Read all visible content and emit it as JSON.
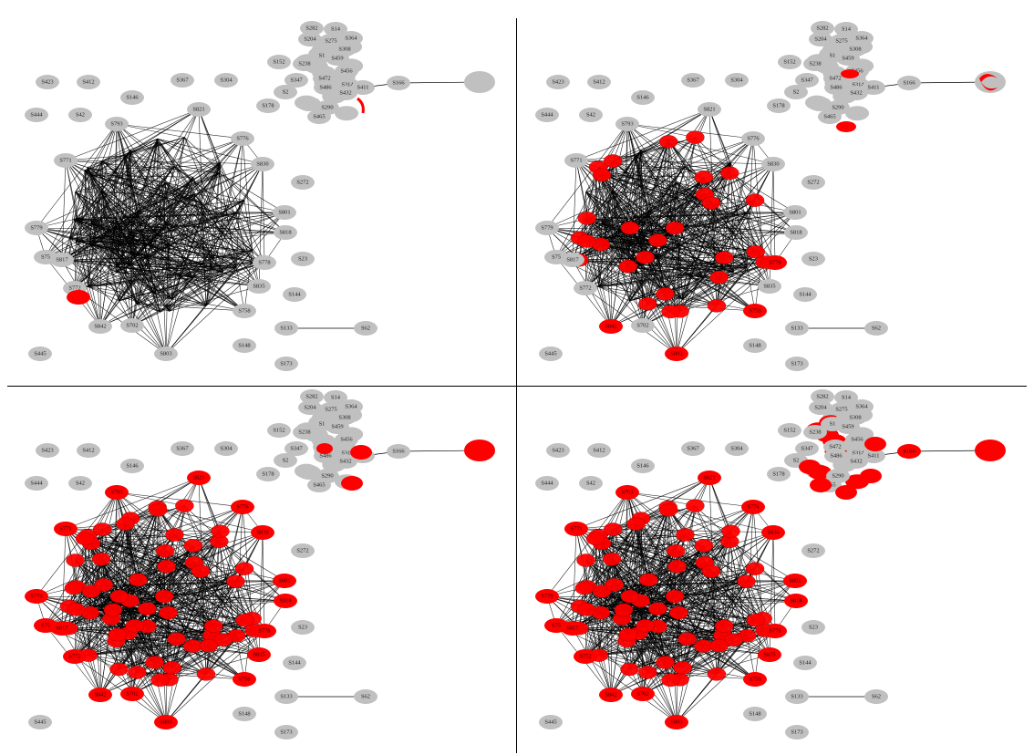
{
  "colors": {
    "inactive_node": "#c0c0c0",
    "active_node": "#ff0000",
    "edge": "#000000",
    "background": "#ffffff",
    "divider": "#000000"
  },
  "nodes": [
    {
      "id": "S282"
    },
    {
      "id": "S14"
    },
    {
      "id": "S204"
    },
    {
      "id": "S275"
    },
    {
      "id": "S364"
    },
    {
      "id": "S308"
    },
    {
      "id": "S152"
    },
    {
      "id": "S238"
    },
    {
      "id": "S1"
    },
    {
      "id": "S459"
    },
    {
      "id": "S456"
    },
    {
      "id": "S347"
    },
    {
      "id": "S472"
    },
    {
      "id": "S314"
    },
    {
      "id": "S486"
    },
    {
      "id": "S432"
    },
    {
      "id": "S411"
    },
    {
      "id": "S166"
    },
    {
      "id": "S178"
    },
    {
      "id": "S290"
    },
    {
      "id": "S465"
    },
    {
      "id": "S2"
    },
    {
      "id": "S423"
    },
    {
      "id": "S412"
    },
    {
      "id": "S367"
    },
    {
      "id": "S304"
    },
    {
      "id": "S146"
    },
    {
      "id": "S444"
    },
    {
      "id": "S42"
    },
    {
      "id": "S793"
    },
    {
      "id": "S821"
    },
    {
      "id": "S776"
    },
    {
      "id": "S771"
    },
    {
      "id": "S830"
    },
    {
      "id": "S272"
    },
    {
      "id": "S801"
    },
    {
      "id": "S779"
    },
    {
      "id": "S818"
    },
    {
      "id": "S75"
    },
    {
      "id": "S817"
    },
    {
      "id": "S778"
    },
    {
      "id": "S23"
    },
    {
      "id": "S772"
    },
    {
      "id": "S835"
    },
    {
      "id": "S144"
    },
    {
      "id": "S758"
    },
    {
      "id": "S842"
    },
    {
      "id": "S702"
    },
    {
      "id": "S133"
    },
    {
      "id": "S62"
    },
    {
      "id": "S445"
    },
    {
      "id": "S803"
    },
    {
      "id": "S148"
    },
    {
      "id": "S173"
    }
  ],
  "panels": [
    {
      "name": "top-left"
    },
    {
      "name": "top-right"
    },
    {
      "name": "bottom-left"
    },
    {
      "name": "bottom-right"
    }
  ]
}
